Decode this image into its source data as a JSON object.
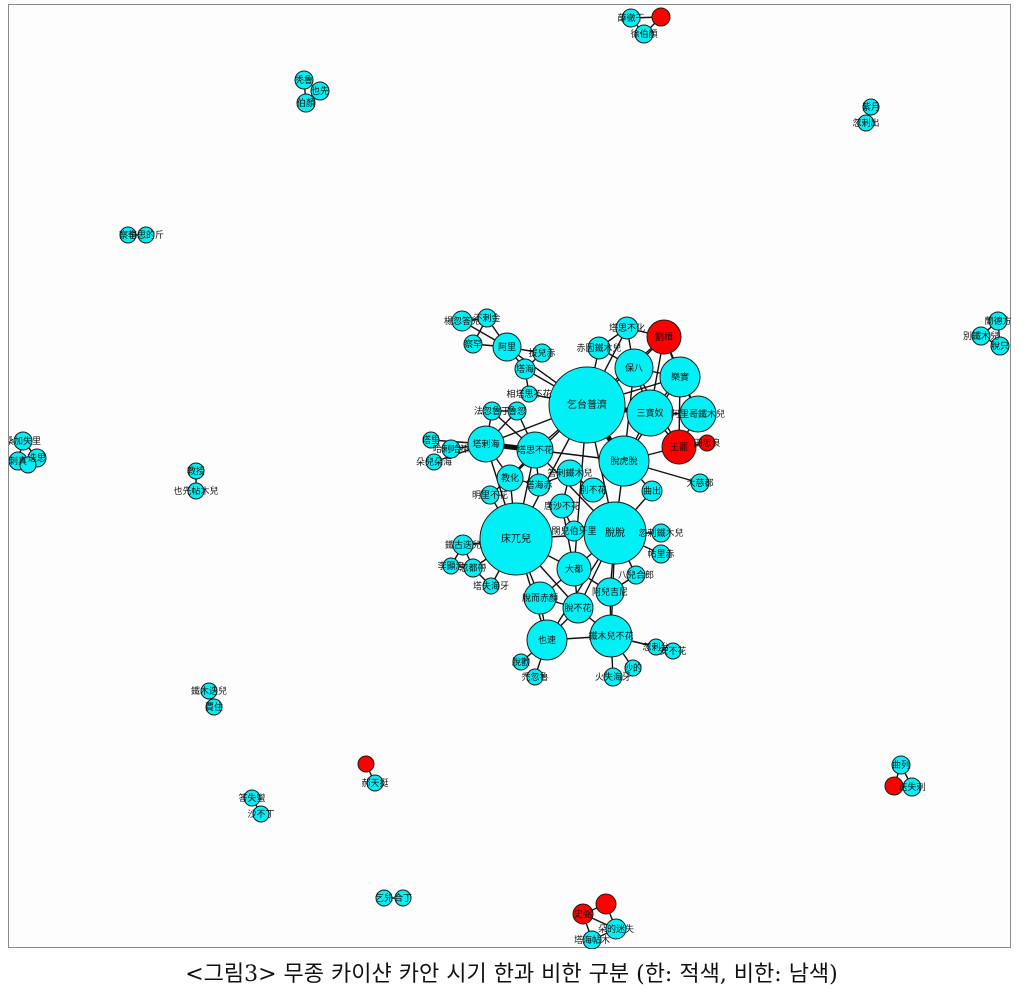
{
  "colors": {
    "han": "#ff0000",
    "non_han": "#00f0f5",
    "edge": "#111111",
    "stroke": "#1a1a1a"
  },
  "caption": "<그림3> 무종 카이샨 카안 시기 한과 비한 구분 (한: 적색, 비한: 남색)",
  "nodes": [
    {
      "id": "n_qitai",
      "label": "乞台普濟",
      "han": false
    },
    {
      "id": "n_chuangwuer",
      "label": "床兀兒",
      "han": false
    },
    {
      "id": "n_tuotuo",
      "label": "脫脫",
      "han": false
    },
    {
      "id": "n_tuohutuo",
      "label": "脫虎脫",
      "han": false
    },
    {
      "id": "n_sanbaonu",
      "label": "三寶奴",
      "han": false
    },
    {
      "id": "n_leshi",
      "label": "樂實",
      "han": false
    },
    {
      "id": "n_baoba",
      "label": "保八",
      "han": false
    },
    {
      "id": "n_wangpi",
      "label": "王罷",
      "han": true
    },
    {
      "id": "n_liuji",
      "label": "劉楫",
      "han": true
    },
    {
      "id": "n_tiangelian",
      "label": "田忠良",
      "han": true
    },
    {
      "id": "n_aligetiemur",
      "label": "阿里哥鐵木兒",
      "han": false
    },
    {
      "id": "n_dasibu",
      "label": "大慈都",
      "han": false
    },
    {
      "id": "n_quchu",
      "label": "曲出",
      "han": false
    },
    {
      "id": "n_taersibuhua",
      "label": "塔思不花",
      "han": false
    },
    {
      "id": "n_tashahai",
      "label": "塔剌海",
      "han": false
    },
    {
      "id": "n_jiaohua",
      "label": "教化",
      "han": false
    },
    {
      "id": "n_dadu",
      "label": "大都",
      "han": false
    },
    {
      "id": "n_yesu",
      "label": "也速",
      "han": false
    },
    {
      "id": "n_tiemuerbuhua",
      "label": "鐵木兒不花",
      "han": false
    },
    {
      "id": "n_tuoerchi",
      "label": "脫而赤顏",
      "han": false
    },
    {
      "id": "n_tuobuhua",
      "label": "脫不花",
      "han": false
    },
    {
      "id": "n_aerjiji",
      "label": "阿兒吉尼",
      "han": false
    },
    {
      "id": "n_ali",
      "label": "阿里",
      "han": false
    },
    {
      "id": "n_tahai",
      "label": "塔海",
      "han": false
    },
    {
      "id": "n_chayin",
      "label": "赤因鐵木兒",
      "han": false
    },
    {
      "id": "n_tasibuhuaT",
      "label": "塔思不化",
      "han": false
    },
    {
      "id": "n_yanghu",
      "label": "楊忽答兒",
      "han": false
    },
    {
      "id": "n_buque",
      "label": "不剌金",
      "han": false
    },
    {
      "id": "n_chahan",
      "label": "察罕",
      "han": false
    },
    {
      "id": "n_baerchi",
      "label": "拔兒赤",
      "han": false
    },
    {
      "id": "n_xiangjia",
      "label": "相塔思不花",
      "han": false
    },
    {
      "id": "n_fahu",
      "label": "法忽魯丁",
      "han": false
    },
    {
      "id": "n_daluhu",
      "label": "魯忽",
      "han": false
    },
    {
      "id": "n_tali",
      "label": "塔里",
      "han": false
    },
    {
      "id": "n_halahu",
      "label": "哈剌哈孫",
      "han": false
    },
    {
      "id": "n_duoer",
      "label": "朵兒朵海",
      "han": false
    },
    {
      "id": "n_mingli",
      "label": "明里不花",
      "han": false
    },
    {
      "id": "n_talai",
      "label": "塔海赤",
      "han": false
    },
    {
      "id": "n_ahuludingtie",
      "label": "答剌鐵木兒",
      "han": false
    },
    {
      "id": "n_qiemubu",
      "label": "別不花",
      "han": false
    },
    {
      "id": "n_busha",
      "label": "唐沙不花",
      "han": false
    },
    {
      "id": "n_heerbai",
      "label": "闊兒伯牙里",
      "han": false
    },
    {
      "id": "n_tiegu",
      "label": "鐵古迭兒",
      "han": false
    },
    {
      "id": "n_lixianzhong",
      "label": "李顯忠",
      "han": false
    },
    {
      "id": "n_huhudai",
      "label": "忽都帶",
      "han": false
    },
    {
      "id": "n_tasi",
      "label": "塔失海牙",
      "han": false
    },
    {
      "id": "n_huimur",
      "label": "忽剌鐵木兒",
      "han": false
    },
    {
      "id": "n_tieli",
      "label": "帖里赤",
      "han": false
    },
    {
      "id": "n_baierhe",
      "label": "八兒合郎",
      "han": false
    },
    {
      "id": "n_tulihu",
      "label": "忽剌台",
      "han": false
    },
    {
      "id": "n_anbuhua",
      "label": "安不花",
      "han": false
    },
    {
      "id": "n_shaduo",
      "label": "沙的",
      "han": false
    },
    {
      "id": "n_huoshi",
      "label": "火失海牙",
      "han": false
    },
    {
      "id": "n_tuo1",
      "label": "脫歡",
      "han": false
    },
    {
      "id": "n_tuo2",
      "label": "禿忽魯",
      "han": false
    },
    {
      "id": "i1a",
      "label": "薛徹干",
      "han": false
    },
    {
      "id": "i1b",
      "label": "徐伯顏",
      "han": false
    },
    {
      "id": "i1c",
      "label": "",
      "han": true
    },
    {
      "id": "i2a",
      "label": "秃魯",
      "han": false
    },
    {
      "id": "i2b",
      "label": "也先",
      "han": false
    },
    {
      "id": "i2c",
      "label": "伯顏",
      "han": false
    },
    {
      "id": "i3a",
      "label": "紫月",
      "han": false
    },
    {
      "id": "i3b",
      "label": "忽剌出",
      "han": false
    },
    {
      "id": "i4a",
      "label": "察罕",
      "han": false
    },
    {
      "id": "i4b",
      "label": "也思的斤",
      "han": false
    },
    {
      "id": "i5a",
      "label": "蘭德方",
      "han": false
    },
    {
      "id": "i5b",
      "label": "別鐵木兒",
      "han": false
    },
    {
      "id": "i5c",
      "label": "脫只",
      "han": false
    },
    {
      "id": "i6a",
      "label": "桑加失里",
      "han": false
    },
    {
      "id": "i6b",
      "label": "刺真",
      "han": false
    },
    {
      "id": "i6c",
      "label": "迭思",
      "han": false
    },
    {
      "id": "i6d",
      "label": "",
      "han": false
    },
    {
      "id": "i7a",
      "label": "教授",
      "han": false
    },
    {
      "id": "i7b",
      "label": "也先帖木兒",
      "han": false
    },
    {
      "id": "i8a",
      "label": "鐵木迭兒",
      "han": false
    },
    {
      "id": "i8b",
      "label": "賈住",
      "han": false
    },
    {
      "id": "i9a",
      "label": "",
      "han": true
    },
    {
      "id": "i9b",
      "label": "郝天挺",
      "han": false
    },
    {
      "id": "i10a",
      "label": "曲列",
      "han": false
    },
    {
      "id": "i10b",
      "label": "",
      "han": true
    },
    {
      "id": "i10c",
      "label": "迭失剌",
      "han": false
    },
    {
      "id": "i11a",
      "label": "答失蠻",
      "han": false
    },
    {
      "id": "i11b",
      "label": "沙不丁",
      "han": false
    },
    {
      "id": "i12a",
      "label": "乞兒",
      "han": false
    },
    {
      "id": "i12b",
      "label": "合丁",
      "han": false
    },
    {
      "id": "i13a",
      "label": "史弼",
      "han": true
    },
    {
      "id": "i13b",
      "label": "",
      "han": true
    },
    {
      "id": "i13c",
      "label": "朵的迷失",
      "han": false
    },
    {
      "id": "i13d",
      "label": "塔海帖木",
      "han": false
    }
  ]
}
